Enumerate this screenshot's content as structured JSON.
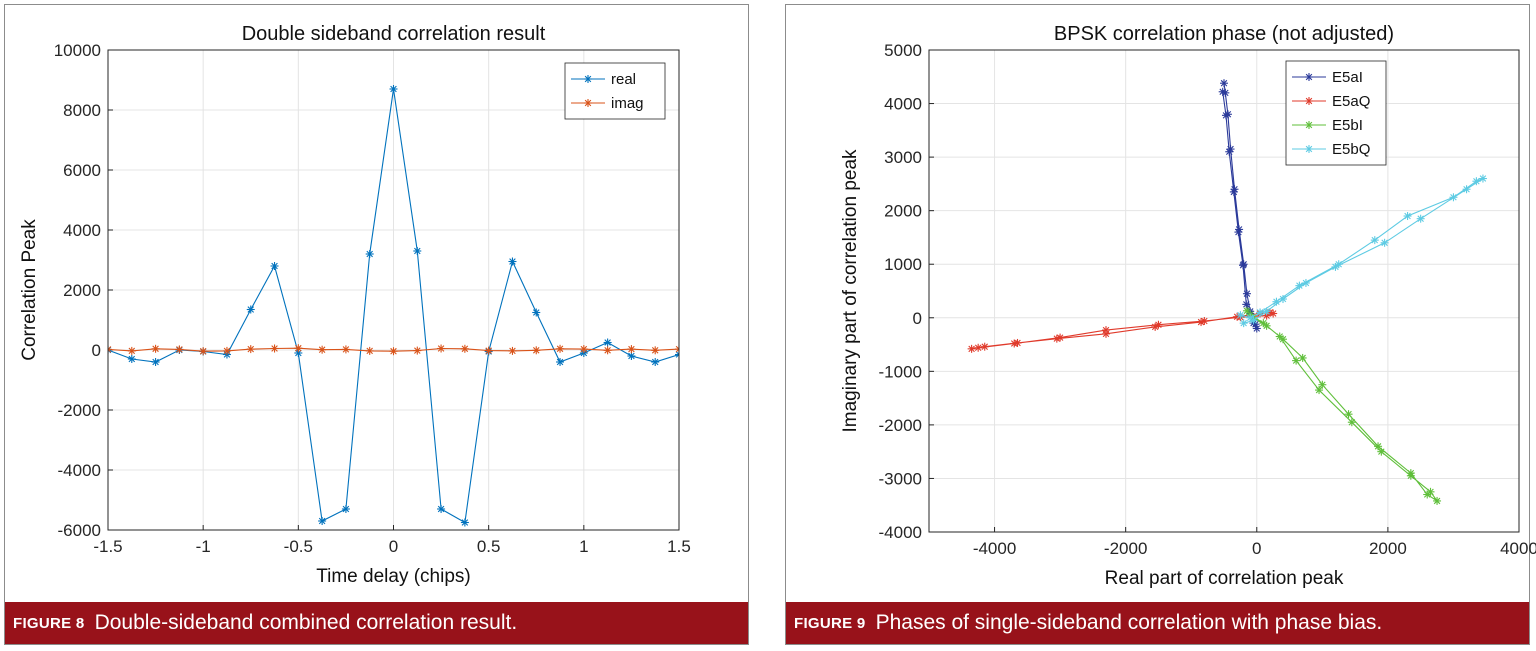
{
  "figures": [
    {
      "label": "FIGURE 8",
      "caption": "Double-sideband combined correlation result."
    },
    {
      "label": "FIGURE 9",
      "caption": "Phases of single-sideband correlation with phase bias."
    }
  ],
  "chart_data": [
    {
      "type": "line",
      "title": "Double sideband correlation result",
      "xlabel": "Time delay (chips)",
      "ylabel": "Correlation Peak",
      "xlim": [
        -1.5,
        1.5
      ],
      "ylim": [
        -6000,
        10000
      ],
      "xticks": [
        -1.5,
        -1,
        -0.5,
        0,
        0.5,
        1,
        1.5
      ],
      "xtick_labels": [
        "-1.5",
        "-1",
        "-0.5",
        "0",
        "0.5",
        "1",
        "1.5"
      ],
      "yticks": [
        -6000,
        -4000,
        -2000,
        0,
        2000,
        4000,
        6000,
        8000,
        10000
      ],
      "ytick_labels": [
        "-6000",
        "-4000",
        "-2000",
        "0",
        "2000",
        "4000",
        "6000",
        "8000",
        "10000"
      ],
      "grid": true,
      "legend_position": "top-right",
      "marker": "asterisk",
      "x": [
        -1.5,
        -1.375,
        -1.25,
        -1.125,
        -1,
        -0.875,
        -0.75,
        -0.625,
        -0.5,
        -0.375,
        -0.25,
        -0.125,
        0,
        0.125,
        0.25,
        0.375,
        0.5,
        0.625,
        0.75,
        0.875,
        1,
        1.125,
        1.25,
        1.375,
        1.5
      ],
      "series": [
        {
          "name": "real",
          "color": "#0072bd",
          "values": [
            0,
            -300,
            -400,
            0,
            -50,
            -150,
            1350,
            2800,
            -100,
            -5700,
            -5300,
            3200,
            8700,
            3300,
            -5300,
            -5750,
            -50,
            2950,
            1250,
            -400,
            -100,
            250,
            -200,
            -400,
            -150
          ]
        },
        {
          "name": "imag",
          "color": "#d95319",
          "values": [
            20,
            -30,
            40,
            20,
            -40,
            -30,
            30,
            50,
            60,
            10,
            20,
            -30,
            -40,
            -20,
            50,
            40,
            -20,
            -30,
            -10,
            40,
            30,
            -10,
            30,
            -10,
            30
          ]
        }
      ]
    },
    {
      "type": "scatter",
      "title": "BPSK correlation phase (not adjusted)",
      "xlabel": "Real part of correlation peak",
      "ylabel": "Imaginary part of correlation peak",
      "xlim": [
        -5000,
        4000
      ],
      "ylim": [
        -4000,
        5000
      ],
      "xticks": [
        -4000,
        -2000,
        0,
        2000,
        4000
      ],
      "xtick_labels": [
        "-4000",
        "-2000",
        "0",
        "2000",
        "4000"
      ],
      "yticks": [
        -4000,
        -3000,
        -2000,
        -1000,
        0,
        1000,
        2000,
        3000,
        4000,
        5000
      ],
      "ytick_labels": [
        "-4000",
        "-3000",
        "-2000",
        "-1000",
        "0",
        "1000",
        "2000",
        "3000",
        "4000",
        "5000"
      ],
      "grid": true,
      "legend_position": "top-right",
      "marker": "asterisk",
      "series": [
        {
          "name": "E5aI",
          "color": "#2b3a9a",
          "points": [
            [
              -500,
              4380
            ],
            [
              -480,
              4200
            ],
            [
              -440,
              3800
            ],
            [
              -400,
              3150
            ],
            [
              -340,
              2400
            ],
            [
              -270,
              1650
            ],
            [
              -200,
              1000
            ],
            [
              -150,
              450
            ],
            [
              -100,
              120
            ],
            [
              -50,
              -100
            ],
            [
              0,
              -200
            ],
            [
              -20,
              -120
            ],
            [
              -100,
              80
            ],
            [
              -160,
              250
            ],
            [
              -210,
              980
            ],
            [
              -280,
              1600
            ],
            [
              -350,
              2350
            ],
            [
              -420,
              3100
            ],
            [
              -470,
              3780
            ],
            [
              -520,
              4220
            ]
          ]
        },
        {
          "name": "E5aQ",
          "color": "#e03a2b",
          "points": [
            [
              -4350,
              -580
            ],
            [
              -4150,
              -540
            ],
            [
              -3650,
              -470
            ],
            [
              -3050,
              -390
            ],
            [
              -2300,
              -300
            ],
            [
              -1550,
              -170
            ],
            [
              -850,
              -80
            ],
            [
              -300,
              20
            ],
            [
              50,
              80
            ],
            [
              200,
              100
            ],
            [
              250,
              80
            ],
            [
              150,
              40
            ],
            [
              -250,
              10
            ],
            [
              -800,
              -60
            ],
            [
              -1500,
              -130
            ],
            [
              -2300,
              -230
            ],
            [
              -3000,
              -370
            ],
            [
              -3700,
              -480
            ],
            [
              -4250,
              -560
            ]
          ]
        },
        {
          "name": "E5bI",
          "color": "#5fbf3a",
          "points": [
            [
              -150,
              130
            ],
            [
              -50,
              0
            ],
            [
              150,
              -150
            ],
            [
              400,
              -400
            ],
            [
              700,
              -750
            ],
            [
              1000,
              -1250
            ],
            [
              1400,
              -1800
            ],
            [
              1850,
              -2400
            ],
            [
              2350,
              -2900
            ],
            [
              2600,
              -3300
            ],
            [
              2750,
              -3420
            ],
            [
              2650,
              -3250
            ],
            [
              2350,
              -2950
            ],
            [
              1900,
              -2500
            ],
            [
              1450,
              -1950
            ],
            [
              950,
              -1350
            ],
            [
              600,
              -800
            ],
            [
              350,
              -350
            ],
            [
              100,
              -100
            ],
            [
              -100,
              60
            ]
          ]
        },
        {
          "name": "E5bQ",
          "color": "#5ecbe3",
          "points": [
            [
              -250,
              50
            ],
            [
              -100,
              0
            ],
            [
              50,
              100
            ],
            [
              300,
              300
            ],
            [
              650,
              600
            ],
            [
              1250,
              1000
            ],
            [
              1800,
              1450
            ],
            [
              2300,
              1900
            ],
            [
              3000,
              2250
            ],
            [
              3350,
              2550
            ],
            [
              3450,
              2600
            ],
            [
              3200,
              2400
            ],
            [
              2500,
              1850
            ],
            [
              1950,
              1400
            ],
            [
              1200,
              950
            ],
            [
              750,
              650
            ],
            [
              400,
              350
            ],
            [
              150,
              120
            ],
            [
              -50,
              -50
            ],
            [
              -200,
              -100
            ]
          ]
        }
      ]
    }
  ]
}
